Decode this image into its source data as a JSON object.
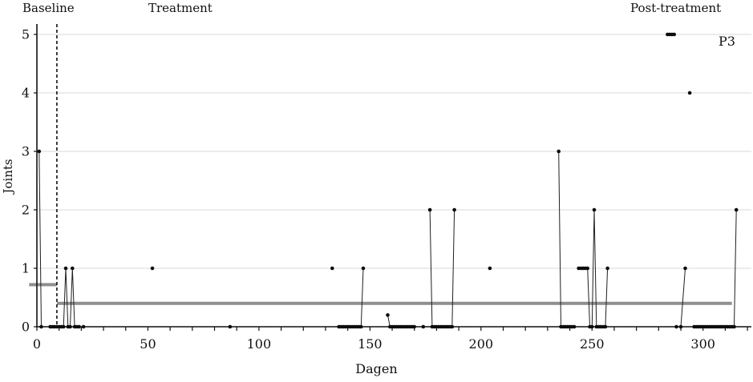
{
  "chart_data": {
    "type": "scatter",
    "title": "",
    "subject_label": "P3",
    "xlabel": "Dagen",
    "ylabel": "Joints",
    "x_ticks": [
      0,
      50,
      100,
      150,
      200,
      250,
      300
    ],
    "x_minor_tick_step": 10,
    "x_range": [
      0,
      322
    ],
    "y_ticks": [
      0,
      1,
      2,
      3,
      4,
      5
    ],
    "y_range": [
      0,
      5
    ],
    "grid": "horizontal-light",
    "legend_position": "none",
    "phases": [
      {
        "label": "Baseline"
      },
      {
        "label": "Treatment"
      },
      {
        "label": "Post-treatment"
      }
    ],
    "phase_boundary_day": 9,
    "mean_lines": [
      {
        "phase": "Baseline",
        "value": 0.72,
        "from_day": -3.5,
        "to_day": 9
      },
      {
        "phase": "Treatment/Post-treatment",
        "value": 0.4,
        "from_day": 9,
        "to_day": 313
      }
    ],
    "series_runs": [
      [
        [
          1,
          3
        ],
        [
          2,
          0
        ]
      ],
      [
        [
          6,
          0
        ],
        [
          7,
          0
        ],
        [
          8,
          0
        ],
        [
          9,
          0
        ],
        [
          10,
          0
        ],
        [
          11,
          0
        ],
        [
          12,
          0
        ],
        [
          13,
          1
        ],
        [
          14,
          0
        ],
        [
          15,
          0
        ],
        [
          16,
          1
        ],
        [
          17,
          0
        ],
        [
          18,
          0
        ],
        [
          19,
          0
        ]
      ],
      [
        [
          21,
          0
        ]
      ],
      [
        [
          52,
          1
        ]
      ],
      [
        [
          87,
          0
        ]
      ],
      [
        [
          133,
          1
        ]
      ],
      [
        [
          136,
          0
        ],
        [
          137,
          0
        ],
        [
          138,
          0
        ],
        [
          139,
          0
        ],
        [
          140,
          0
        ],
        [
          141,
          0
        ],
        [
          142,
          0
        ],
        [
          143,
          0
        ],
        [
          144,
          0
        ],
        [
          145,
          0
        ],
        [
          146,
          0
        ],
        [
          147,
          1
        ]
      ],
      [
        [
          158,
          0.2
        ],
        [
          159,
          0
        ],
        [
          160,
          0
        ],
        [
          161,
          0
        ],
        [
          162,
          0
        ],
        [
          163,
          0
        ],
        [
          164,
          0
        ],
        [
          165,
          0
        ],
        [
          166,
          0
        ],
        [
          167,
          0
        ],
        [
          168,
          0
        ],
        [
          169,
          0
        ],
        [
          170,
          0
        ]
      ],
      [
        [
          174,
          0
        ]
      ],
      [
        [
          177,
          2
        ],
        [
          178,
          0
        ],
        [
          179,
          0
        ],
        [
          180,
          0
        ],
        [
          181,
          0
        ],
        [
          182,
          0
        ],
        [
          183,
          0
        ],
        [
          184,
          0
        ],
        [
          185,
          0
        ],
        [
          186,
          0
        ],
        [
          187,
          0
        ],
        [
          188,
          2
        ]
      ],
      [
        [
          204,
          1
        ]
      ],
      [
        [
          235,
          3
        ],
        [
          236,
          0
        ],
        [
          237,
          0
        ],
        [
          238,
          0
        ],
        [
          239,
          0
        ],
        [
          240,
          0
        ],
        [
          241,
          0
        ],
        [
          242,
          0
        ]
      ],
      [
        [
          244,
          1
        ],
        [
          245,
          1
        ],
        [
          246,
          1
        ],
        [
          247,
          1
        ],
        [
          248,
          1
        ],
        [
          249,
          0
        ],
        [
          250,
          0
        ],
        [
          251,
          2
        ],
        [
          252,
          0
        ],
        [
          253,
          0
        ],
        [
          254,
          0
        ],
        [
          255,
          0
        ],
        [
          256,
          0
        ],
        [
          257,
          1
        ]
      ],
      [
        [
          284,
          5
        ],
        [
          285,
          5
        ],
        [
          286,
          5
        ],
        [
          287,
          5
        ]
      ],
      [
        [
          288,
          0
        ]
      ],
      [
        [
          290,
          0
        ],
        [
          292,
          1
        ]
      ],
      [
        [
          294,
          4
        ]
      ],
      [
        [
          296,
          0
        ],
        [
          297,
          0
        ],
        [
          298,
          0
        ],
        [
          299,
          0
        ],
        [
          300,
          0
        ],
        [
          301,
          0
        ],
        [
          302,
          0
        ],
        [
          303,
          0
        ],
        [
          304,
          0
        ],
        [
          305,
          0
        ],
        [
          306,
          0
        ],
        [
          307,
          0
        ],
        [
          308,
          0
        ],
        [
          309,
          0
        ],
        [
          310,
          0
        ],
        [
          311,
          0
        ],
        [
          312,
          0
        ],
        [
          313,
          0
        ],
        [
          314,
          0
        ],
        [
          315,
          2
        ]
      ]
    ],
    "colors": {
      "point": "#0d0d0d",
      "line": "#1f1f1f",
      "mean_bar": "#8f8f8f",
      "gridline": "#d9d9d9",
      "axis": "#111111",
      "phase_divider": "#111111",
      "text": "#111111"
    }
  }
}
